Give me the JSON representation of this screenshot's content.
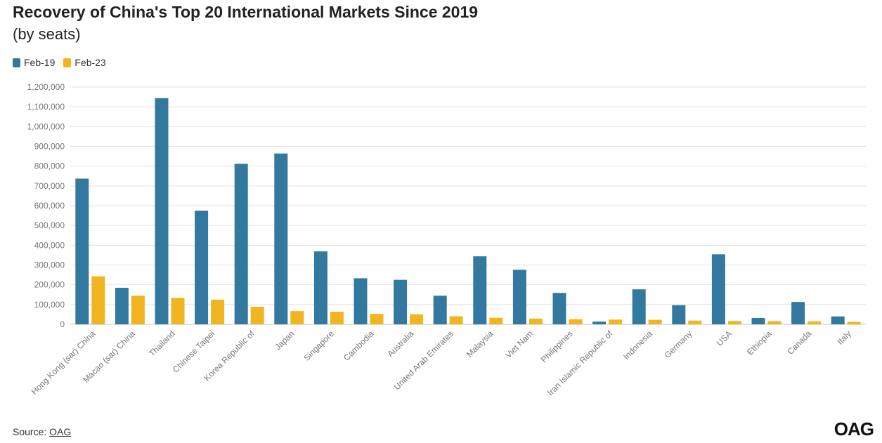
{
  "header": {
    "title": "Recovery of China's Top 20 International Markets Since 2019",
    "subtitle": "(by seats)"
  },
  "legend": [
    {
      "label": "Feb-19",
      "color": "#33789f"
    },
    {
      "label": "Feb-23",
      "color": "#f0b521"
    }
  ],
  "footer": {
    "source_label": "Source:",
    "source_link": "OAG",
    "logo": "OAG"
  },
  "chart_data": {
    "type": "bar",
    "categories": [
      "Hong Kong (sar) China",
      "Macao (sar) China",
      "Thailand",
      "Chinese Taipei",
      "Korea Republic of",
      "Japan",
      "Singapore",
      "Cambodia",
      "Australia",
      "United Arab Emirates",
      "Malaysia",
      "Viet Nam",
      "Philippines",
      "Iran Islamic Republic of",
      "Indonesia",
      "Germany",
      "USA",
      "Ethiopia",
      "Canada",
      "Italy"
    ],
    "series": [
      {
        "name": "Feb-19",
        "color": "#33789f",
        "values": [
          737000,
          185000,
          1144000,
          575000,
          812000,
          864000,
          369000,
          233000,
          225000,
          145000,
          344000,
          276000,
          159000,
          14000,
          177000,
          97000,
          354000,
          32000,
          113000,
          40000
        ]
      },
      {
        "name": "Feb-23",
        "color": "#f0b521",
        "values": [
          243000,
          145000,
          134000,
          125000,
          89000,
          67000,
          64000,
          53000,
          51000,
          41000,
          33000,
          29000,
          26000,
          24000,
          23000,
          19000,
          17000,
          16000,
          15000,
          13000
        ]
      }
    ],
    "ylim": [
      0,
      1200000
    ],
    "yticks": [
      0,
      100000,
      200000,
      300000,
      400000,
      500000,
      600000,
      700000,
      800000,
      900000,
      1000000,
      1100000,
      1200000
    ],
    "ytick_labels": [
      "0",
      "100,000",
      "200,000",
      "300,000",
      "400,000",
      "500,000",
      "600,000",
      "700,000",
      "800,000",
      "900,000",
      "1,000,000",
      "1,100,000",
      "1,200,000"
    ],
    "grid": true,
    "legend_position": "top-left",
    "xlabel": "",
    "ylabel": ""
  }
}
